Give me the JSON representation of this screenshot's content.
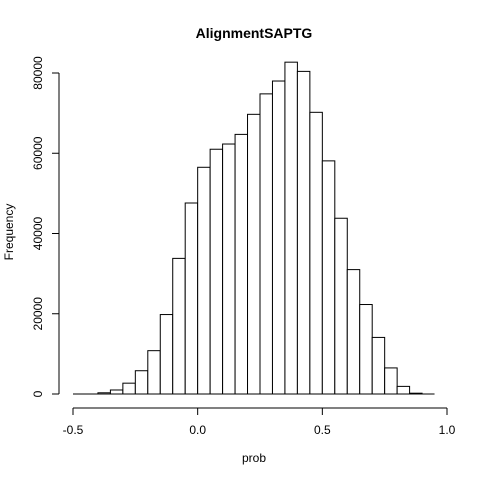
{
  "chart_data": {
    "type": "bar",
    "title": "AlignmentSAPTG",
    "xlabel": "prob",
    "ylabel": "Frequency",
    "xlim": [
      -0.5,
      1.0
    ],
    "ylim": [
      0,
      85000
    ],
    "x_ticks": [
      -0.5,
      0.0,
      0.5,
      1.0
    ],
    "x_tick_labels": [
      "-0.5",
      "0.0",
      "0.5",
      "1.0"
    ],
    "y_ticks": [
      0,
      20000,
      40000,
      60000,
      80000
    ],
    "y_tick_labels": [
      "0",
      "20000",
      "40000",
      "60000",
      "80000"
    ],
    "bin_width": 0.05,
    "bins": [
      {
        "start": -0.4,
        "end": -0.35,
        "count": 300
      },
      {
        "start": -0.35,
        "end": -0.3,
        "count": 1000
      },
      {
        "start": -0.3,
        "end": -0.25,
        "count": 2700
      },
      {
        "start": -0.25,
        "end": -0.2,
        "count": 5800
      },
      {
        "start": -0.2,
        "end": -0.15,
        "count": 10800
      },
      {
        "start": -0.15,
        "end": -0.1,
        "count": 19800
      },
      {
        "start": -0.1,
        "end": -0.05,
        "count": 33800
      },
      {
        "start": -0.05,
        "end": 0.0,
        "count": 47600
      },
      {
        "start": 0.0,
        "end": 0.05,
        "count": 56500
      },
      {
        "start": 0.05,
        "end": 0.1,
        "count": 61000
      },
      {
        "start": 0.1,
        "end": 0.15,
        "count": 62300
      },
      {
        "start": 0.15,
        "end": 0.2,
        "count": 64700
      },
      {
        "start": 0.2,
        "end": 0.25,
        "count": 69700
      },
      {
        "start": 0.25,
        "end": 0.3,
        "count": 74800
      },
      {
        "start": 0.3,
        "end": 0.35,
        "count": 78000
      },
      {
        "start": 0.35,
        "end": 0.4,
        "count": 82700
      },
      {
        "start": 0.4,
        "end": 0.45,
        "count": 80400
      },
      {
        "start": 0.45,
        "end": 0.5,
        "count": 70200
      },
      {
        "start": 0.5,
        "end": 0.55,
        "count": 58100
      },
      {
        "start": 0.55,
        "end": 0.6,
        "count": 43800
      },
      {
        "start": 0.6,
        "end": 0.65,
        "count": 31000
      },
      {
        "start": 0.65,
        "end": 0.7,
        "count": 22300
      },
      {
        "start": 0.7,
        "end": 0.75,
        "count": 14100
      },
      {
        "start": 0.75,
        "end": 0.8,
        "count": 6500
      },
      {
        "start": 0.8,
        "end": 0.85,
        "count": 1900
      },
      {
        "start": 0.85,
        "end": 0.9,
        "count": 200
      },
      {
        "start": 0.9,
        "end": 0.95,
        "count": 0
      }
    ],
    "baseline_range": [
      -0.5,
      0.95
    ],
    "grid": false,
    "legend": "none"
  }
}
